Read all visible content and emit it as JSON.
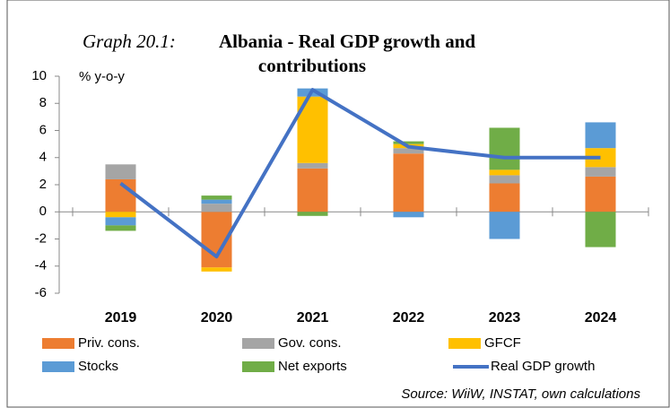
{
  "chart_data": {
    "type": "stacked_bar_line",
    "title_label": "Graph 20.1:",
    "title_lines": [
      "Albania - Real GDP growth and",
      "contributions"
    ],
    "y_label": "% y-o-y",
    "source": "Source: WiiW, INSTAT, own calculations",
    "categories": [
      "2019",
      "2020",
      "2021",
      "2022",
      "2023",
      "2024"
    ],
    "series": [
      {
        "name": "Priv. cons.",
        "color": "#ED7D31",
        "values": [
          2.4,
          -4.1,
          3.2,
          4.3,
          2.1,
          2.6
        ]
      },
      {
        "name": "Gov. cons.",
        "color": "#A5A5A5",
        "values": [
          1.1,
          0.6,
          0.4,
          0.4,
          0.6,
          0.7
        ]
      },
      {
        "name": "GFCF",
        "color": "#FFC000",
        "values": [
          -0.4,
          -0.3,
          4.9,
          0.3,
          0.4,
          1.4
        ]
      },
      {
        "name": "Stocks",
        "color": "#5B9BD5",
        "values": [
          -0.6,
          0.3,
          0.6,
          -0.4,
          -2.0,
          1.9
        ]
      },
      {
        "name": "Net exports",
        "color": "#70AD47",
        "values": [
          -0.4,
          0.3,
          -0.3,
          0.2,
          3.1,
          -2.6
        ]
      },
      {
        "name": "Real GDP growth",
        "color": "#4472C4",
        "type": "line",
        "values": [
          2.1,
          -3.3,
          9.0,
          4.8,
          4.0,
          4.0
        ]
      }
    ],
    "ylim": [
      -6,
      10
    ],
    "yticks": [
      -6,
      -4,
      -2,
      0,
      2,
      4,
      6,
      8,
      10
    ],
    "grid": false
  }
}
